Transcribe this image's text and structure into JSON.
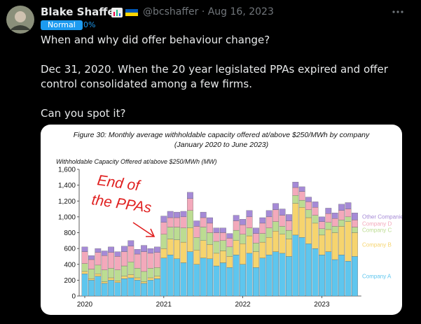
{
  "tweet": {
    "author": "Blake Shaffer",
    "handle": "@bcshaffer",
    "separator": "·",
    "date": "Aug 16, 2023",
    "badge": "Normal",
    "badge_value": "0%",
    "paragraphs": [
      "When and why did offer behaviour change?",
      "Dec 31, 2020. When the 20 year legislated PPAs expired and offer control consolidated among a few firms.",
      "Can you spot it?"
    ]
  },
  "chart_data": {
    "type": "bar",
    "stacked": true,
    "title": "Figure 30: Monthly average withholdable capacity offered at/above $250/MWh by company",
    "subtitle": "(January 2020 to June 2023)",
    "y_label": "Withholdable Capacity Offered at/above $250/MWh (MW)",
    "annotation": [
      "End of",
      "the PPAs"
    ],
    "legend": "right",
    "categories": [
      "2020",
      null,
      null,
      null,
      null,
      null,
      null,
      null,
      null,
      null,
      null,
      null,
      "2021",
      null,
      null,
      null,
      null,
      null,
      null,
      null,
      null,
      null,
      null,
      null,
      "2022",
      null,
      null,
      null,
      null,
      null,
      null,
      null,
      null,
      null,
      null,
      null,
      "2023",
      null,
      null,
      null,
      null,
      null
    ],
    "ylim": [
      0,
      1600
    ],
    "yticks": [
      0,
      200,
      400,
      600,
      800,
      {
        "value": 1000,
        "label": "1,000"
      },
      {
        "value": 1200,
        "label": "1,200"
      },
      {
        "value": 1400,
        "label": "1,400"
      },
      {
        "value": 1600,
        "label": "1,600"
      }
    ],
    "series": [
      {
        "name": "Company A",
        "color": "#5ec6ee",
        "values": [
          280,
          200,
          250,
          160,
          200,
          170,
          220,
          230,
          200,
          160,
          200,
          220,
          480,
          520,
          470,
          420,
          560,
          400,
          480,
          470,
          380,
          420,
          360,
          520,
          400,
          540,
          360,
          480,
          520,
          560,
          540,
          500,
          770,
          740,
          660,
          600,
          520,
          560,
          460,
          520,
          440,
          500
        ]
      },
      {
        "name": "Company B",
        "color": "#f6d46e",
        "values": [
          30,
          20,
          30,
          20,
          30,
          20,
          30,
          40,
          30,
          20,
          30,
          30,
          120,
          200,
          240,
          260,
          300,
          180,
          220,
          180,
          160,
          150,
          140,
          180,
          260,
          220,
          200,
          200,
          220,
          260,
          240,
          220,
          400,
          380,
          330,
          320,
          250,
          280,
          340,
          360,
          500,
          300
        ]
      },
      {
        "name": "Company C",
        "color": "#bcdc92",
        "values": [
          100,
          120,
          110,
          150,
          120,
          140,
          130,
          160,
          120,
          130,
          120,
          110,
          180,
          150,
          160,
          180,
          220,
          160,
          170,
          150,
          150,
          130,
          120,
          130,
          120,
          100,
          110,
          110,
          120,
          120,
          100,
          110,
          100,
          90,
          100,
          100,
          80,
          90,
          80,
          80,
          60,
          70
        ]
      },
      {
        "name": "Company D",
        "color": "#f3a9bb",
        "values": [
          150,
          120,
          160,
          180,
          200,
          170,
          180,
          200,
          180,
          250,
          190,
          190,
          150,
          120,
          120,
          140,
          150,
          140,
          120,
          120,
          110,
          100,
          110,
          120,
          120,
          140,
          120,
          130,
          140,
          150,
          140,
          120,
          100,
          110,
          100,
          100,
          90,
          110,
          100,
          120,
          100,
          90
        ]
      },
      {
        "name": "Other Companies",
        "color": "#a58ad6",
        "values": [
          60,
          50,
          50,
          60,
          70,
          60,
          70,
          70,
          60,
          80,
          60,
          70,
          80,
          80,
          70,
          70,
          80,
          70,
          70,
          70,
          60,
          60,
          60,
          70,
          70,
          80,
          70,
          70,
          80,
          80,
          80,
          80,
          70,
          60,
          60,
          70,
          60,
          70,
          70,
          80,
          80,
          90
        ]
      }
    ]
  }
}
